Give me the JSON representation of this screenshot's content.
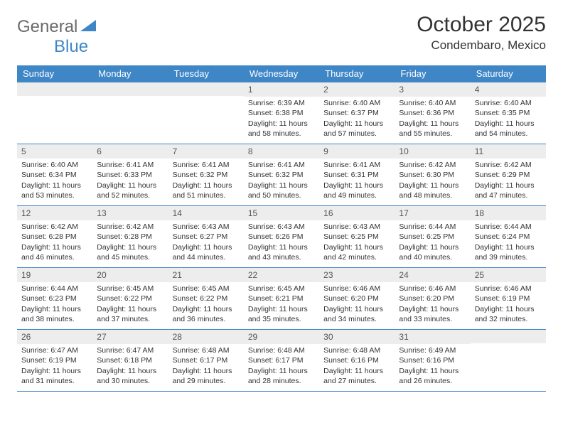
{
  "logo": {
    "text1": "General",
    "text2": "Blue"
  },
  "title": "October 2025",
  "location": "Condembaro, Mexico",
  "colors": {
    "header_blue": "#3f86c7",
    "light_gray": "#ededed",
    "logo_gray": "#6a6a6a",
    "logo_blue": "#3f86c7",
    "text": "#333333"
  },
  "day_headers": [
    "Sunday",
    "Monday",
    "Tuesday",
    "Wednesday",
    "Thursday",
    "Friday",
    "Saturday"
  ],
  "weeks": [
    [
      {
        "num": "",
        "sunrise": "",
        "sunset": "",
        "daylight": ""
      },
      {
        "num": "",
        "sunrise": "",
        "sunset": "",
        "daylight": ""
      },
      {
        "num": "",
        "sunrise": "",
        "sunset": "",
        "daylight": ""
      },
      {
        "num": "1",
        "sunrise": "Sunrise: 6:39 AM",
        "sunset": "Sunset: 6:38 PM",
        "daylight": "Daylight: 11 hours and 58 minutes."
      },
      {
        "num": "2",
        "sunrise": "Sunrise: 6:40 AM",
        "sunset": "Sunset: 6:37 PM",
        "daylight": "Daylight: 11 hours and 57 minutes."
      },
      {
        "num": "3",
        "sunrise": "Sunrise: 6:40 AM",
        "sunset": "Sunset: 6:36 PM",
        "daylight": "Daylight: 11 hours and 55 minutes."
      },
      {
        "num": "4",
        "sunrise": "Sunrise: 6:40 AM",
        "sunset": "Sunset: 6:35 PM",
        "daylight": "Daylight: 11 hours and 54 minutes."
      }
    ],
    [
      {
        "num": "5",
        "sunrise": "Sunrise: 6:40 AM",
        "sunset": "Sunset: 6:34 PM",
        "daylight": "Daylight: 11 hours and 53 minutes."
      },
      {
        "num": "6",
        "sunrise": "Sunrise: 6:41 AM",
        "sunset": "Sunset: 6:33 PM",
        "daylight": "Daylight: 11 hours and 52 minutes."
      },
      {
        "num": "7",
        "sunrise": "Sunrise: 6:41 AM",
        "sunset": "Sunset: 6:32 PM",
        "daylight": "Daylight: 11 hours and 51 minutes."
      },
      {
        "num": "8",
        "sunrise": "Sunrise: 6:41 AM",
        "sunset": "Sunset: 6:32 PM",
        "daylight": "Daylight: 11 hours and 50 minutes."
      },
      {
        "num": "9",
        "sunrise": "Sunrise: 6:41 AM",
        "sunset": "Sunset: 6:31 PM",
        "daylight": "Daylight: 11 hours and 49 minutes."
      },
      {
        "num": "10",
        "sunrise": "Sunrise: 6:42 AM",
        "sunset": "Sunset: 6:30 PM",
        "daylight": "Daylight: 11 hours and 48 minutes."
      },
      {
        "num": "11",
        "sunrise": "Sunrise: 6:42 AM",
        "sunset": "Sunset: 6:29 PM",
        "daylight": "Daylight: 11 hours and 47 minutes."
      }
    ],
    [
      {
        "num": "12",
        "sunrise": "Sunrise: 6:42 AM",
        "sunset": "Sunset: 6:28 PM",
        "daylight": "Daylight: 11 hours and 46 minutes."
      },
      {
        "num": "13",
        "sunrise": "Sunrise: 6:42 AM",
        "sunset": "Sunset: 6:28 PM",
        "daylight": "Daylight: 11 hours and 45 minutes."
      },
      {
        "num": "14",
        "sunrise": "Sunrise: 6:43 AM",
        "sunset": "Sunset: 6:27 PM",
        "daylight": "Daylight: 11 hours and 44 minutes."
      },
      {
        "num": "15",
        "sunrise": "Sunrise: 6:43 AM",
        "sunset": "Sunset: 6:26 PM",
        "daylight": "Daylight: 11 hours and 43 minutes."
      },
      {
        "num": "16",
        "sunrise": "Sunrise: 6:43 AM",
        "sunset": "Sunset: 6:25 PM",
        "daylight": "Daylight: 11 hours and 42 minutes."
      },
      {
        "num": "17",
        "sunrise": "Sunrise: 6:44 AM",
        "sunset": "Sunset: 6:25 PM",
        "daylight": "Daylight: 11 hours and 40 minutes."
      },
      {
        "num": "18",
        "sunrise": "Sunrise: 6:44 AM",
        "sunset": "Sunset: 6:24 PM",
        "daylight": "Daylight: 11 hours and 39 minutes."
      }
    ],
    [
      {
        "num": "19",
        "sunrise": "Sunrise: 6:44 AM",
        "sunset": "Sunset: 6:23 PM",
        "daylight": "Daylight: 11 hours and 38 minutes."
      },
      {
        "num": "20",
        "sunrise": "Sunrise: 6:45 AM",
        "sunset": "Sunset: 6:22 PM",
        "daylight": "Daylight: 11 hours and 37 minutes."
      },
      {
        "num": "21",
        "sunrise": "Sunrise: 6:45 AM",
        "sunset": "Sunset: 6:22 PM",
        "daylight": "Daylight: 11 hours and 36 minutes."
      },
      {
        "num": "22",
        "sunrise": "Sunrise: 6:45 AM",
        "sunset": "Sunset: 6:21 PM",
        "daylight": "Daylight: 11 hours and 35 minutes."
      },
      {
        "num": "23",
        "sunrise": "Sunrise: 6:46 AM",
        "sunset": "Sunset: 6:20 PM",
        "daylight": "Daylight: 11 hours and 34 minutes."
      },
      {
        "num": "24",
        "sunrise": "Sunrise: 6:46 AM",
        "sunset": "Sunset: 6:20 PM",
        "daylight": "Daylight: 11 hours and 33 minutes."
      },
      {
        "num": "25",
        "sunrise": "Sunrise: 6:46 AM",
        "sunset": "Sunset: 6:19 PM",
        "daylight": "Daylight: 11 hours and 32 minutes."
      }
    ],
    [
      {
        "num": "26",
        "sunrise": "Sunrise: 6:47 AM",
        "sunset": "Sunset: 6:19 PM",
        "daylight": "Daylight: 11 hours and 31 minutes."
      },
      {
        "num": "27",
        "sunrise": "Sunrise: 6:47 AM",
        "sunset": "Sunset: 6:18 PM",
        "daylight": "Daylight: 11 hours and 30 minutes."
      },
      {
        "num": "28",
        "sunrise": "Sunrise: 6:48 AM",
        "sunset": "Sunset: 6:17 PM",
        "daylight": "Daylight: 11 hours and 29 minutes."
      },
      {
        "num": "29",
        "sunrise": "Sunrise: 6:48 AM",
        "sunset": "Sunset: 6:17 PM",
        "daylight": "Daylight: 11 hours and 28 minutes."
      },
      {
        "num": "30",
        "sunrise": "Sunrise: 6:48 AM",
        "sunset": "Sunset: 6:16 PM",
        "daylight": "Daylight: 11 hours and 27 minutes."
      },
      {
        "num": "31",
        "sunrise": "Sunrise: 6:49 AM",
        "sunset": "Sunset: 6:16 PM",
        "daylight": "Daylight: 11 hours and 26 minutes."
      },
      {
        "num": "",
        "sunrise": "",
        "sunset": "",
        "daylight": ""
      }
    ]
  ]
}
